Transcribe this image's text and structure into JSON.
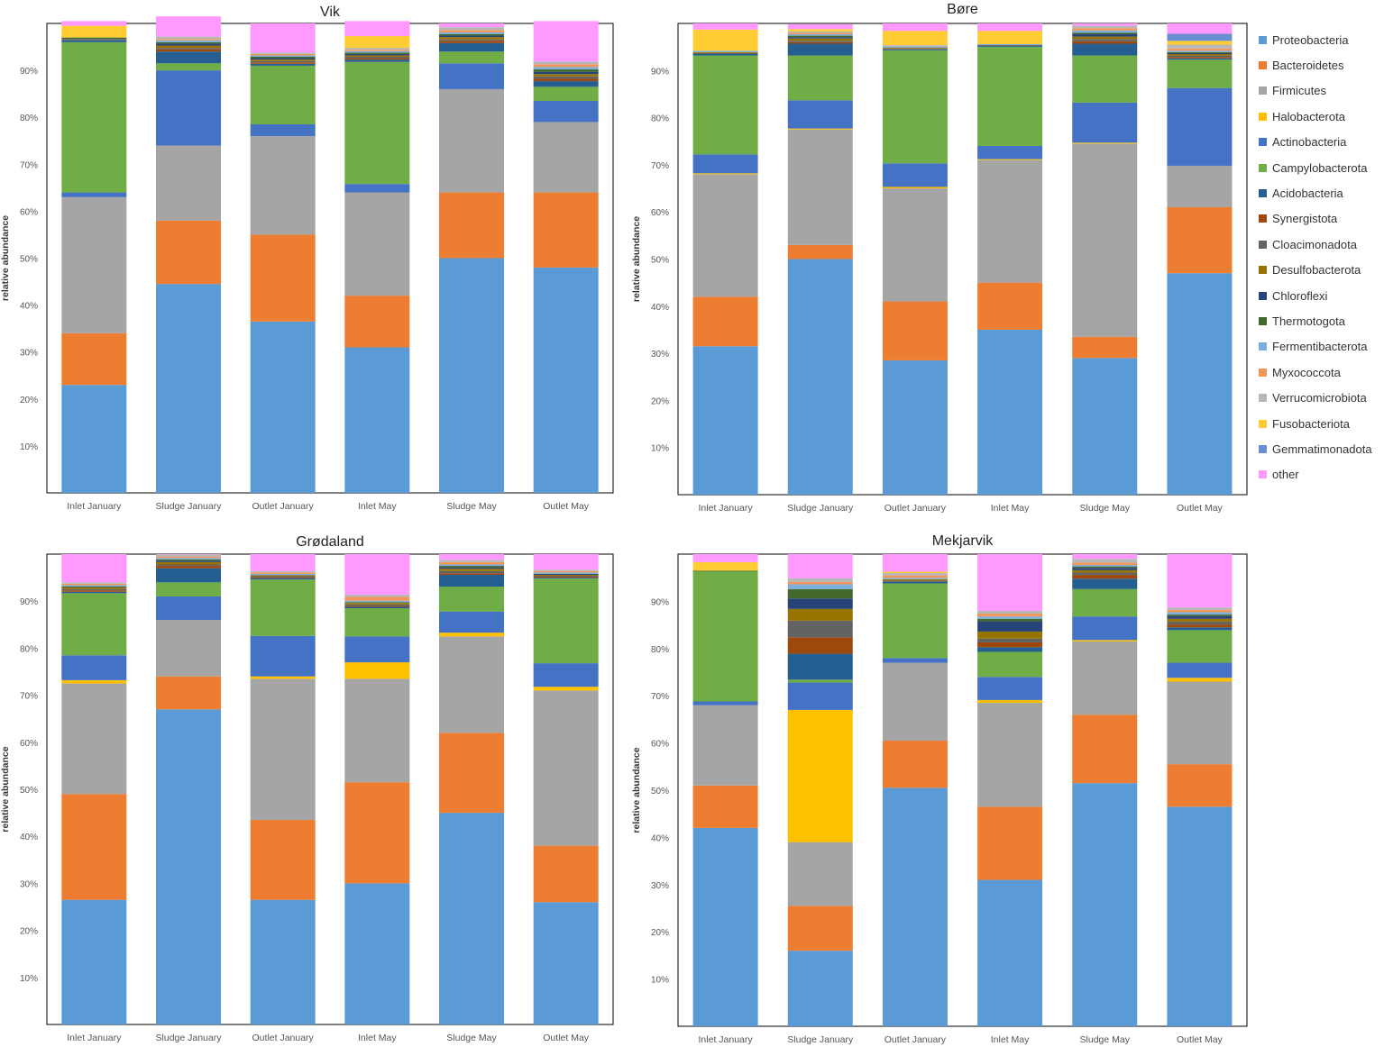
{
  "series": [
    {
      "name": "Proteobacteria",
      "color": "#5B9BD5"
    },
    {
      "name": "Bacteroidetes",
      "color": "#ED7D31"
    },
    {
      "name": "Firmicutes",
      "color": "#A5A5A5"
    },
    {
      "name": "Halobacterota",
      "color": "#FFC000"
    },
    {
      "name": "Actinobacteria",
      "color": "#4472C4"
    },
    {
      "name": "Campylobacterota",
      "color": "#70AD47"
    },
    {
      "name": "Acidobacteria",
      "color": "#255E91"
    },
    {
      "name": "Synergistota",
      "color": "#9E480E"
    },
    {
      "name": "Cloacimonadota",
      "color": "#636363"
    },
    {
      "name": "Desulfobacterota",
      "color": "#997300"
    },
    {
      "name": "Chloroflexi",
      "color": "#264478"
    },
    {
      "name": "Thermotogota",
      "color": "#43682B"
    },
    {
      "name": "Fermentibacterota",
      "color": "#7CAFDD"
    },
    {
      "name": "Myxococcota",
      "color": "#F1975A"
    },
    {
      "name": "Verrucomicrobiota",
      "color": "#B7B7B7"
    },
    {
      "name": "Fusobacteriota",
      "color": "#FFCD33"
    },
    {
      "name": "Gemmatimonadota",
      "color": "#698ED0"
    },
    {
      "name": "other",
      "color": "#FF99FF"
    }
  ],
  "chart_data": [
    {
      "type": "bar",
      "stacked": true,
      "title": "Vik",
      "ylabel": "relative abundance",
      "ylim": [
        0,
        100
      ],
      "yticks": [
        "10%",
        "20%",
        "30%",
        "40%",
        "50%",
        "60%",
        "70%",
        "80%",
        "90%"
      ],
      "categories": [
        "Inlet January",
        "Sludge January",
        "Outlet January",
        "Inlet May",
        "Sludge May",
        "Outlet May"
      ],
      "values": [
        [
          23,
          11,
          29,
          0,
          1,
          32,
          0.4,
          0,
          0.3,
          0,
          0,
          0.3,
          0,
          0,
          0,
          2.5,
          0,
          1.0
        ],
        [
          44.5,
          13.5,
          16,
          0,
          16,
          1.5,
          2.5,
          0.5,
          0.3,
          0.5,
          0.4,
          0.3,
          0.4,
          0.3,
          0.5,
          0,
          0,
          4.3
        ],
        [
          36.5,
          18.5,
          21,
          0,
          2.5,
          12.5,
          0.4,
          0.3,
          0.3,
          0.3,
          0.3,
          0.3,
          0.3,
          0.3,
          0.3,
          0,
          0,
          6.2
        ],
        [
          31,
          11,
          22,
          0,
          1.8,
          26,
          0.5,
          0.3,
          0.3,
          0.3,
          0.3,
          0.3,
          0.3,
          0.3,
          0.4,
          2.5,
          0,
          3.2
        ],
        [
          50,
          14,
          22,
          0,
          5.5,
          2.5,
          1.8,
          0.5,
          0.3,
          0.5,
          0.3,
          0.3,
          0.4,
          0.5,
          0.6,
          0,
          0,
          0.8
        ],
        [
          48,
          16,
          15,
          0,
          4.5,
          3,
          1.2,
          0.5,
          0.5,
          0.5,
          0.5,
          0.5,
          0.5,
          0.6,
          0.6,
          0,
          0,
          8.6
        ]
      ]
    },
    {
      "type": "bar",
      "stacked": true,
      "title": "Børe",
      "ylabel": "relative abundance",
      "ylim": [
        0,
        100
      ],
      "yticks": [
        "10%",
        "20%",
        "30%",
        "40%",
        "50%",
        "60%",
        "70%",
        "80%",
        "90%"
      ],
      "categories": [
        "Inlet January",
        "Sludge January",
        "Outlet January",
        "Inlet May",
        "Sludge May",
        "Outlet May"
      ],
      "values": [
        [
          31.5,
          10.5,
          26,
          0.2,
          4,
          21,
          0.3,
          0,
          0.2,
          0.2,
          0,
          0,
          0.3,
          0,
          0,
          4.5,
          0,
          1.3
        ],
        [
          50,
          3,
          24.5,
          0.2,
          6,
          9.5,
          2.5,
          0.3,
          0.3,
          0.5,
          0.3,
          0.3,
          0.3,
          0.3,
          0.3,
          0.5,
          0,
          1.0
        ],
        [
          28.5,
          12.5,
          24,
          0.3,
          5,
          24,
          0.2,
          0,
          0.2,
          0.2,
          0,
          0,
          0.2,
          0,
          0.3,
          3,
          0,
          1.6
        ],
        [
          35,
          10,
          26,
          0.2,
          2.8,
          21,
          0.2,
          0,
          0.2,
          0,
          0,
          0,
          0.2,
          0,
          0,
          2.8,
          0,
          1.6
        ],
        [
          29,
          4.5,
          41,
          0.2,
          8.5,
          10,
          2.5,
          0.5,
          0.5,
          0.5,
          0.5,
          0.3,
          0.5,
          0.5,
          0.5,
          0,
          0,
          0.5
        ],
        [
          47,
          14,
          8.8,
          0,
          16.5,
          6,
          0.3,
          0.3,
          0.3,
          0.3,
          0.2,
          0.2,
          0.3,
          0.5,
          0.8,
          0.8,
          1.5,
          2.2
        ]
      ]
    },
    {
      "type": "bar",
      "stacked": true,
      "title": "Grødaland",
      "ylabel": "relative abundance",
      "ylim": [
        0,
        100
      ],
      "yticks": [
        "10%",
        "20%",
        "30%",
        "40%",
        "50%",
        "60%",
        "70%",
        "80%",
        "90%"
      ],
      "categories": [
        "Inlet January",
        "Sludge January",
        "Outlet January",
        "Inlet May",
        "Sludge May",
        "Outlet May"
      ],
      "values": [
        [
          26.5,
          22.5,
          23.5,
          0.7,
          5.3,
          13.2,
          0.3,
          0.3,
          0.3,
          0.3,
          0,
          0.2,
          0.3,
          0.3,
          0.3,
          0,
          0,
          6.0
        ],
        [
          67,
          7,
          12,
          0,
          5,
          3,
          3,
          0.5,
          0.3,
          0.5,
          0.3,
          0.3,
          0.3,
          0.3,
          0.4,
          0,
          0,
          0.1
        ],
        [
          26.5,
          17,
          30,
          0.5,
          8.6,
          12,
          0.3,
          0.2,
          0.2,
          0.2,
          0,
          0,
          0.3,
          0.3,
          0.3,
          0,
          0,
          3.6
        ],
        [
          30,
          21.5,
          22,
          3.5,
          5.5,
          6,
          0.3,
          0.2,
          0.3,
          0.3,
          0,
          0.2,
          0.3,
          0.8,
          0.5,
          0,
          0,
          8.6
        ],
        [
          45,
          17,
          20.5,
          0.8,
          4.5,
          5.3,
          2.5,
          0.3,
          0.5,
          0.5,
          0.3,
          0.3,
          0.3,
          0.5,
          0.5,
          0,
          0,
          1.2
        ],
        [
          26,
          12,
          33,
          0.8,
          5,
          18,
          0.2,
          0.2,
          0.2,
          0.2,
          0.2,
          0,
          0.3,
          0.3,
          0.3,
          0,
          0,
          3.3
        ]
      ]
    },
    {
      "type": "bar",
      "stacked": true,
      "title": "Mekjarvik",
      "ylabel": "relative abundance",
      "ylim": [
        0,
        100
      ],
      "yticks": [
        "10%",
        "20%",
        "30%",
        "40%",
        "50%",
        "60%",
        "70%",
        "80%",
        "90%"
      ],
      "categories": [
        "Inlet January",
        "Sludge January",
        "Outlet January",
        "Inlet May",
        "Sludge May",
        "Outlet May"
      ],
      "values": [
        [
          42,
          9,
          17,
          0,
          0.8,
          27.5,
          0,
          0,
          0,
          0,
          0,
          0.2,
          0,
          0,
          0,
          1.8,
          0,
          1.7
        ],
        [
          16,
          9.5,
          13.5,
          28,
          5.8,
          0.6,
          5.5,
          3.5,
          3.5,
          2.5,
          2.2,
          2,
          1,
          0.5,
          0.8,
          0,
          0,
          5.1
        ],
        [
          50.5,
          10,
          16.5,
          0,
          1,
          15.8,
          0.3,
          0,
          0.3,
          0.3,
          0,
          0,
          0.3,
          0.5,
          0.5,
          0.3,
          0,
          3.7
        ],
        [
          31,
          15.5,
          22,
          0.6,
          4.9,
          5.3,
          1,
          1,
          0.8,
          1.5,
          2.2,
          0.5,
          0.5,
          0.6,
          0.6,
          0,
          0,
          12
        ],
        [
          51.5,
          14.5,
          15.5,
          0.3,
          5,
          5.8,
          2.2,
          0.8,
          0.5,
          0.5,
          0.5,
          0.3,
          0.3,
          0.5,
          0.8,
          0,
          0,
          1.0
        ],
        [
          46.5,
          9,
          17.5,
          0.8,
          3.2,
          6.9,
          0.6,
          0.6,
          0.6,
          0.6,
          0.6,
          0.3,
          0.5,
          0.5,
          0.5,
          0,
          0,
          11.3
        ]
      ]
    }
  ]
}
